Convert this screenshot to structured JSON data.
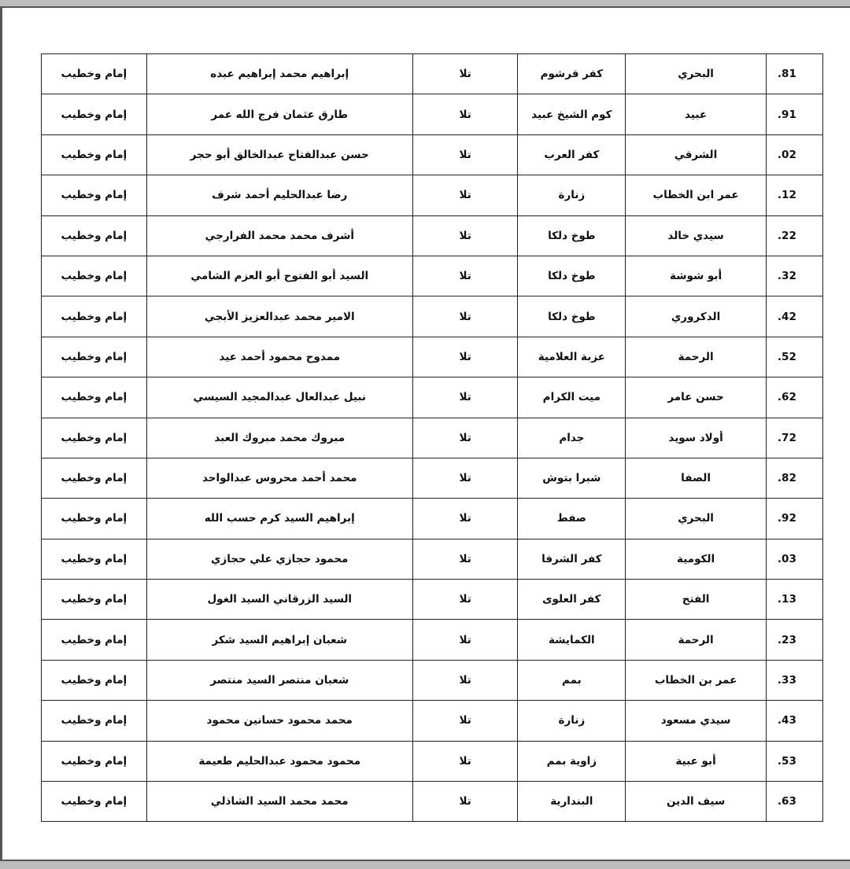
{
  "rows": [
    {
      "num": ".81",
      "mosque": "البحري",
      "village": "كفر قرشوم",
      "center": "تلا",
      "name": "إبراهيم محمد إبراهيم عبده",
      "role": "إمام وخطيب"
    },
    {
      "num": ".91",
      "mosque": "عبيد",
      "village": "كوم الشيخ عبيد",
      "center": "تلا",
      "name": "طارق عثمان فرج الله عمر",
      "role": "إمام وخطيب"
    },
    {
      "num": ".02",
      "mosque": "الشرقي",
      "village": "كفر العرب",
      "center": "تلا",
      "name": "حسن عبدالفتاح عبدالخالق أبو حجر",
      "role": "إمام وخطيب"
    },
    {
      "num": ".12",
      "mosque": "عمر ابن الخطاب",
      "village": "زنارة",
      "center": "تلا",
      "name": "رضا عبدالحليم أحمد شرف",
      "role": "إمام وخطيب"
    },
    {
      "num": ".22",
      "mosque": "سيدي خالد",
      "village": "طوخ دلكا",
      "center": "تلا",
      "name": "أشرف محمد محمد الفرارجي",
      "role": "إمام وخطيب"
    },
    {
      "num": ".32",
      "mosque": "أبو شوشة",
      "village": "طوخ دلكا",
      "center": "تلا",
      "name": "السيد أبو الفتوح أبو العزم الشامي",
      "role": "إمام وخطيب"
    },
    {
      "num": ".42",
      "mosque": "الدكروري",
      "village": "طوخ دلكا",
      "center": "تلا",
      "name": "الامير محمد عبدالعزيز الأبجي",
      "role": "إمام وخطيب"
    },
    {
      "num": ".52",
      "mosque": "الرحمة",
      "village": "عزبة العلامية",
      "center": "تلا",
      "name": "ممدوح محمود أحمد عيد",
      "role": "إمام وخطيب"
    },
    {
      "num": ".62",
      "mosque": "حسن عامر",
      "village": "ميت الكرام",
      "center": "تلا",
      "name": "نبيل عبدالعال عبدالمجيد السيسي",
      "role": "إمام وخطيب"
    },
    {
      "num": ".72",
      "mosque": "أولاد سويد",
      "village": "جدام",
      "center": "تلا",
      "name": "مبروك محمد مبروك العبد",
      "role": "إمام وخطيب"
    },
    {
      "num": ".82",
      "mosque": "الصفا",
      "village": "شبرا بتوش",
      "center": "تلا",
      "name": "محمد أحمد محروس عبدالواحد",
      "role": "إمام وخطيب"
    },
    {
      "num": ".92",
      "mosque": "البحري",
      "village": "صفط",
      "center": "تلا",
      "name": "إبراهيم السيد كرم حسب الله",
      "role": "إمام وخطيب"
    },
    {
      "num": ".03",
      "mosque": "الكومية",
      "village": "كفر الشرفا",
      "center": "تلا",
      "name": "محمود حجازي علي حجازي",
      "role": "إمام وخطيب"
    },
    {
      "num": ".13",
      "mosque": "الفتح",
      "village": "كفر العلوى",
      "center": "تلا",
      "name": "السيد الزرقاني السيد الغول",
      "role": "إمام وخطيب"
    },
    {
      "num": ".23",
      "mosque": "الرحمة",
      "village": "الكمايشة",
      "center": "تلا",
      "name": "شعبان إبراهيم السيد شكر",
      "role": "إمام وخطيب"
    },
    {
      "num": ".33",
      "mosque": "عمر بن الخطاب",
      "village": "بمم",
      "center": "تلا",
      "name": "شعبان منتصر السيد منتصر",
      "role": "إمام وخطيب"
    },
    {
      "num": ".43",
      "mosque": "سيدي مسعود",
      "village": "زنارة",
      "center": "تلا",
      "name": "محمد محمود حسانين محمود",
      "role": "إمام وخطيب"
    },
    {
      "num": ".53",
      "mosque": "أبو عبية",
      "village": "زاوية بمم",
      "center": "تلا",
      "name": "محمود محمود عبدالحليم طعيمة",
      "role": "إمام وخطيب"
    },
    {
      "num": ".63",
      "mosque": "سيف الدين",
      "village": "البندارية",
      "center": "تلا",
      "name": "محمد محمد السيد الشاذلي",
      "role": "إمام وخطيب"
    }
  ]
}
